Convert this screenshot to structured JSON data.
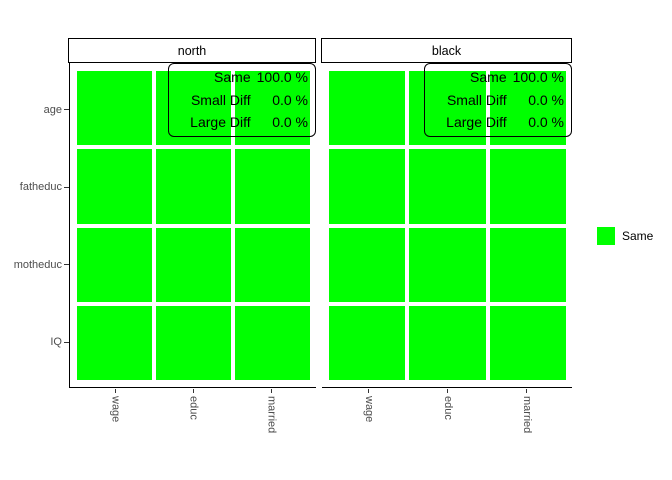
{
  "colors": {
    "tile_green": "#00FF00",
    "axis_text": "#4D4D4D",
    "line": "#000000",
    "background": "#FFFFFF"
  },
  "facets": [
    {
      "label": "north",
      "annotation": [
        {
          "label": "Same",
          "value": "100.0 %"
        },
        {
          "label": "Small Diff",
          "value": "0.0 %"
        },
        {
          "label": "Large Diff",
          "value": "0.0 %"
        }
      ]
    },
    {
      "label": "black",
      "annotation": [
        {
          "label": "Same",
          "value": "100.0 %"
        },
        {
          "label": "Small Diff",
          "value": "0.0 %"
        },
        {
          "label": "Large Diff",
          "value": "0.0 %"
        }
      ]
    }
  ],
  "y_axis": {
    "categories": [
      "age",
      "fatheduc",
      "motheduc",
      "IQ"
    ]
  },
  "x_axis": {
    "categories": [
      "wage",
      "educ",
      "married"
    ]
  },
  "legend": {
    "items": [
      {
        "label": "Same",
        "color": "#00FF00"
      }
    ]
  },
  "chart_data": {
    "type": "heatmap",
    "facets": [
      "north",
      "black"
    ],
    "x": [
      "wage",
      "educ",
      "married"
    ],
    "y": [
      "age",
      "fatheduc",
      "motheduc",
      "IQ"
    ],
    "cells": {
      "north": "all cells category Same",
      "black": "all cells category Same"
    },
    "facet_summaries": [
      {
        "facet": "north",
        "Same": 100.0,
        "Small Diff": 0.0,
        "Large Diff": 0.0
      },
      {
        "facet": "black",
        "Same": 100.0,
        "Small Diff": 0.0,
        "Large Diff": 0.0
      }
    ],
    "legend_entries": [
      "Same"
    ],
    "legend_position": "right",
    "title": "",
    "xlabel": "",
    "ylabel": "",
    "grid": false
  }
}
